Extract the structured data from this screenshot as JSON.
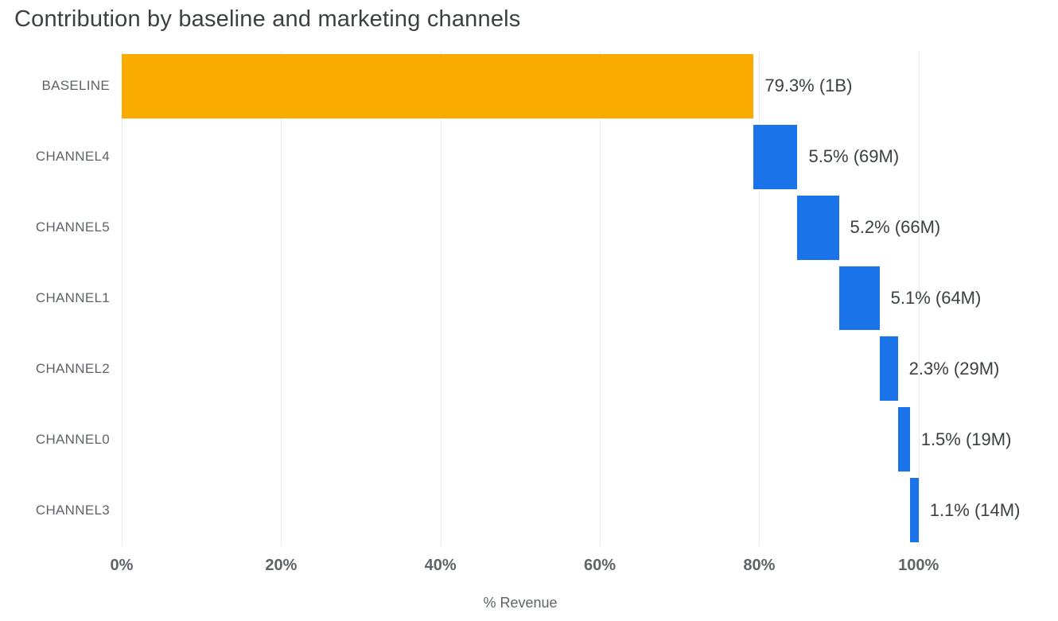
{
  "chart_data": {
    "type": "bar",
    "subtype": "horizontal-waterfall",
    "title": "Contribution by baseline and marketing channels",
    "xlabel": "% Revenue",
    "ylabel": "",
    "xlim": [
      0,
      116
    ],
    "grid": "vertical-gridlines",
    "legend": "none",
    "x_ticks": [
      {
        "value": 0,
        "label": "0%"
      },
      {
        "value": 20,
        "label": "20%"
      },
      {
        "value": 40,
        "label": "40%"
      },
      {
        "value": 60,
        "label": "60%"
      },
      {
        "value": 80,
        "label": "80%"
      },
      {
        "value": 100,
        "label": "100%"
      }
    ],
    "categories": [
      "BASELINE",
      "CHANNEL4",
      "CHANNEL5",
      "CHANNEL1",
      "CHANNEL2",
      "CHANNEL0",
      "CHANNEL3"
    ],
    "bars": [
      {
        "category": "BASELINE",
        "start": 0.0,
        "value": 79.3,
        "end": 79.3,
        "label": "79.3% (1B)",
        "color": "#F9AB00"
      },
      {
        "category": "CHANNEL4",
        "start": 79.3,
        "value": 5.5,
        "end": 84.8,
        "label": "5.5% (69M)",
        "color": "#1A73E8"
      },
      {
        "category": "CHANNEL5",
        "start": 84.8,
        "value": 5.2,
        "end": 90.0,
        "label": "5.2% (66M)",
        "color": "#1A73E8"
      },
      {
        "category": "CHANNEL1",
        "start": 90.0,
        "value": 5.1,
        "end": 95.1,
        "label": "5.1% (64M)",
        "color": "#1A73E8"
      },
      {
        "category": "CHANNEL2",
        "start": 95.1,
        "value": 2.3,
        "end": 97.4,
        "label": "2.3% (29M)",
        "color": "#1A73E8"
      },
      {
        "category": "CHANNEL0",
        "start": 97.4,
        "value": 1.5,
        "end": 98.9,
        "label": "1.5% (19M)",
        "color": "#1A73E8"
      },
      {
        "category": "CHANNEL3",
        "start": 98.9,
        "value": 1.1,
        "end": 100.0,
        "label": "1.1% (14M)",
        "color": "#1A73E8"
      }
    ],
    "colors": {
      "baseline_bar": "#F9AB00",
      "channel_bar": "#1A73E8",
      "gridline": "#E8EAED",
      "title_text": "#3C4043",
      "axis_text": "#5F6368"
    }
  }
}
